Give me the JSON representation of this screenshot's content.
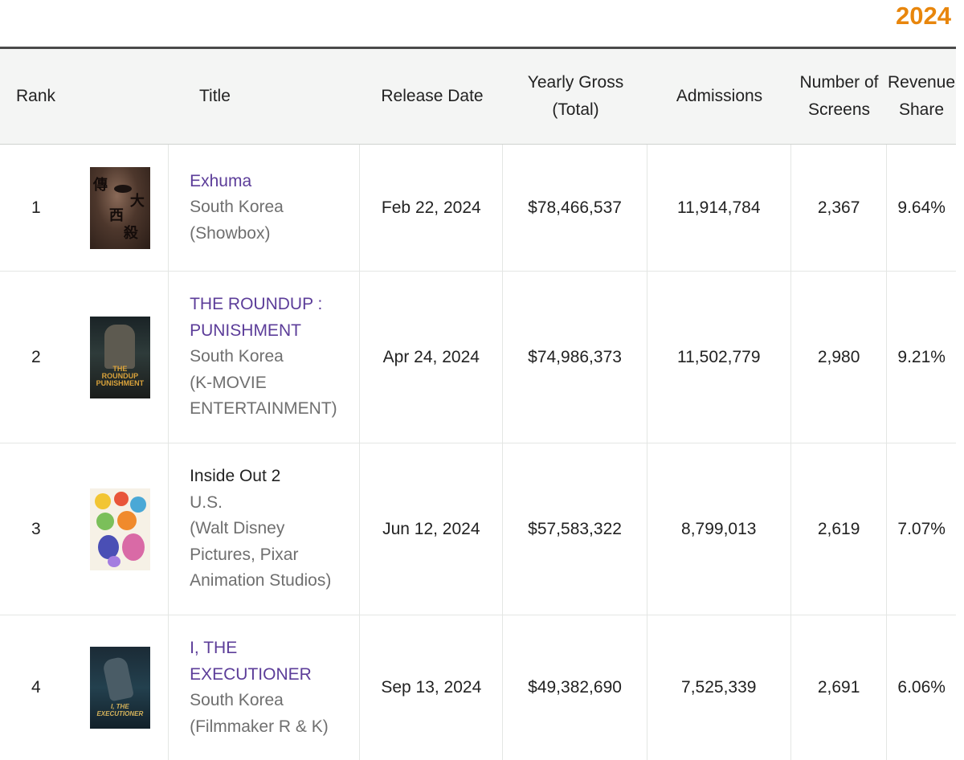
{
  "year": "2024",
  "headers": {
    "rank": "Rank",
    "title": "Title",
    "release_date": "Release Date",
    "gross_line1": "Yearly Gross",
    "gross_line2": "(Total)",
    "admissions": "Admissions",
    "screens_line1": "Number of",
    "screens_line2": "Screens",
    "share_line1": "Revenue",
    "share_line2": "Share"
  },
  "rows": [
    {
      "rank": "1",
      "title_lines": [
        "Exhuma"
      ],
      "country": "South Korea",
      "distributor_lines": [
        "(Showbox)"
      ],
      "release_date": "Feb 22, 2024",
      "gross": "$78,466,537",
      "admissions": "11,914,784",
      "screens": "2,367",
      "share": "9.64%"
    },
    {
      "rank": "2",
      "title_lines": [
        "THE ROUNDUP :",
        "PUNISHMENT"
      ],
      "country": "South Korea",
      "distributor_lines": [
        "(K-MOVIE",
        "ENTERTAINMENT)"
      ],
      "release_date": "Apr 24, 2024",
      "gross": "$74,986,373",
      "admissions": "11,502,779",
      "screens": "2,980",
      "share": "9.21%"
    },
    {
      "rank": "3",
      "title_lines": [
        "Inside Out 2"
      ],
      "country": "U.S.",
      "distributor_lines": [
        "(Walt Disney",
        "Pictures, Pixar",
        "Animation Studios)"
      ],
      "release_date": "Jun 12, 2024",
      "gross": "$57,583,322",
      "admissions": "8,799,013",
      "screens": "2,619",
      "share": "7.07%"
    },
    {
      "rank": "4",
      "title_lines": [
        "I, THE",
        "EXECUTIONER"
      ],
      "country": "South Korea",
      "distributor_lines": [
        "(Filmmaker R & K)"
      ],
      "release_date": "Sep 13, 2024",
      "gross": "$49,382,690",
      "admissions": "7,525,339",
      "screens": "2,691",
      "share": "6.06%"
    }
  ],
  "posters": {
    "p1_glyphs": [
      "傳",
      "大",
      "西",
      "殺"
    ],
    "p2_logo": [
      "THE",
      "ROUNDUP",
      "PUNISHMENT"
    ],
    "p4_logo": [
      "I, THE",
      "EXECUTIONER"
    ]
  },
  "colors": {
    "year": "#e8860c",
    "title_link": "#5c3d99",
    "subtext": "#6f6f6f",
    "header_bg": "#f4f5f4"
  }
}
